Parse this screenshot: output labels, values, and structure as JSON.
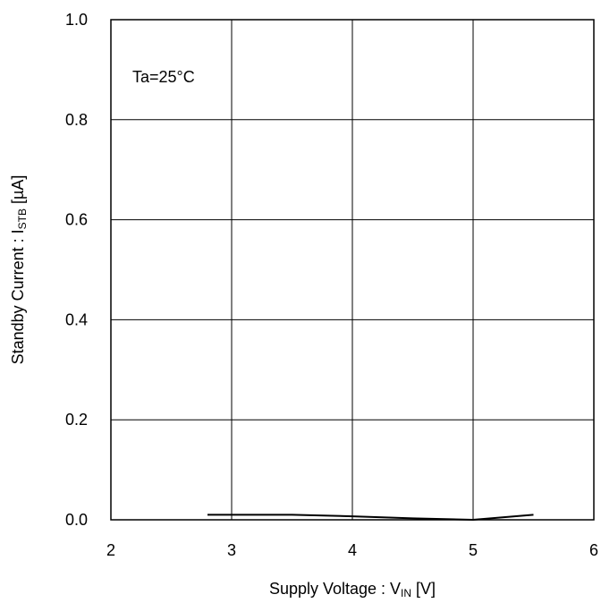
{
  "chart_data": {
    "type": "line",
    "xlabel": {
      "main": "Supply Voltage : V",
      "sub": "IN",
      "unit": " [V]"
    },
    "ylabel": {
      "main": "Standby Current : I",
      "sub": "STB",
      "unit": " [µA]"
    },
    "xlim": [
      2,
      6
    ],
    "ylim": [
      0.0,
      1.0
    ],
    "x_ticks": [
      2,
      3,
      4,
      5,
      6
    ],
    "x_tick_labels": [
      "2",
      "3",
      "4",
      "5",
      "6"
    ],
    "y_ticks": [
      0.0,
      0.2,
      0.4,
      0.6,
      0.8,
      1.0
    ],
    "y_tick_labels": [
      "0.0",
      "0.2",
      "0.4",
      "0.6",
      "0.8",
      "1.0"
    ],
    "grid": true,
    "annotation": "Ta=25°C",
    "series": [
      {
        "x": [
          2.8,
          3.0,
          3.5,
          4.0,
          4.5,
          5.0,
          5.5
        ],
        "values": [
          0.01,
          0.01,
          0.01,
          0.007,
          0.003,
          0.0,
          0.01
        ],
        "color": "#000000"
      }
    ]
  }
}
